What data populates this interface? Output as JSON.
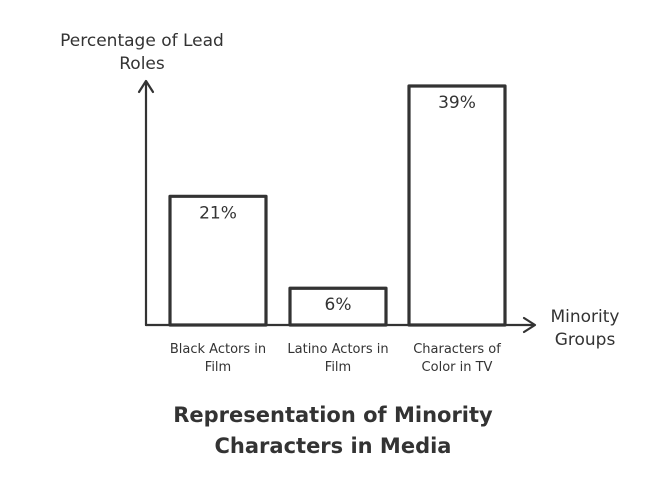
{
  "chart_data": {
    "type": "bar",
    "title": "Representation of Minority Characters in Media",
    "ylabel": "Percentage of Lead Roles",
    "xlabel": "Minority Groups",
    "categories": [
      "Black Actors in Film",
      "Latino Actors in Film",
      "Characters of Color in TV"
    ],
    "values": [
      21,
      6,
      39
    ],
    "data_labels": [
      "21%",
      "6%",
      "39%"
    ],
    "ylim": [
      0,
      41
    ],
    "grid": false,
    "legend": "none"
  }
}
